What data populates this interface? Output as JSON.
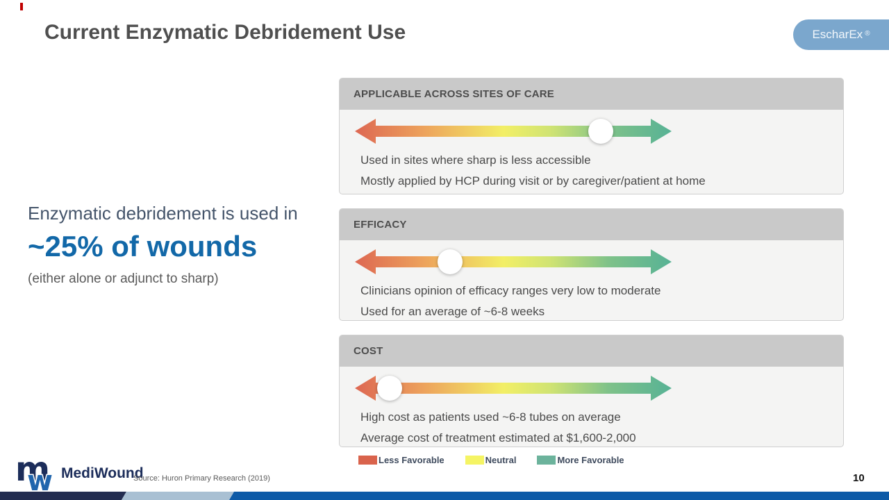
{
  "slide": {
    "title": "Current Enzymatic Debridement Use",
    "badge": {
      "label": "EscharEx",
      "registered": "®"
    },
    "source": "Source: Huron Primary Research (2019)",
    "page_number": "10"
  },
  "left_block": {
    "line1": "Enzymatic debridement is used in",
    "highlight": "~25% of wounds",
    "line2": "(either alone or adjunct to sharp)"
  },
  "panels": [
    {
      "header": "APPLICABLE ACROSS SITES OF CARE",
      "marker_percent": 77.4,
      "bullets": [
        "Used in sites where sharp is less accessible",
        "Mostly applied by HCP during visit or by caregiver/patient at home"
      ]
    },
    {
      "header": "EFFICACY",
      "marker_percent": 30.3,
      "bullets": [
        "Clinicians opinion of efficacy ranges very low to moderate",
        "Used for an average of ~6-8 weeks"
      ]
    },
    {
      "header": "COST",
      "marker_percent": 11.2,
      "bullets": [
        "High cost as patients used ~6-8 tubes on average",
        "Average cost of treatment estimated at $1,600-2,000"
      ]
    }
  ],
  "scale": {
    "stops": [
      "#dd6752",
      "#eda35c",
      "#f2ef66",
      "#cfe373",
      "#7fc289",
      "#57b295"
    ]
  },
  "legend": [
    {
      "label": "Less Favorable",
      "color": "#d9634c"
    },
    {
      "label": "Neutral",
      "color": "#f5f464"
    },
    {
      "label": "More Favorable",
      "color": "#6cb39c"
    }
  ],
  "logo": {
    "mark_m": "m",
    "mark_w": "w",
    "name": "MediWound"
  },
  "bottom_bar_colors": {
    "navy": "#232d50",
    "light": "#a9c0d3",
    "blue": "#0d5aa7"
  }
}
